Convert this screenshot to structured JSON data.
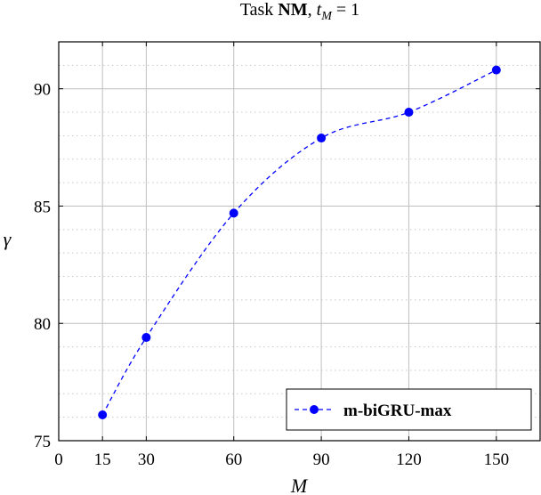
{
  "chart_data": {
    "type": "line",
    "title": {
      "prefix": "Task ",
      "bold": "NM",
      "comma": ", ",
      "var": "t",
      "sub": "M",
      "rest": " = 1"
    },
    "xlabel": "M",
    "ylabel": "γ",
    "x_ticks": [
      0,
      15,
      30,
      60,
      90,
      120,
      150
    ],
    "x_grid": [
      15,
      30,
      60,
      90,
      120,
      150
    ],
    "y_ticks": [
      75,
      80,
      85,
      90
    ],
    "y_minor_step": 1,
    "xlim": [
      0,
      165
    ],
    "ylim": [
      75,
      92
    ],
    "grid": true,
    "legend_position": "bottom-right",
    "series": [
      {
        "name": "m-biGRU-max",
        "color": "#0000ff",
        "line_style": "dashed",
        "marker": "circle",
        "x": [
          15,
          30,
          60,
          90,
          120,
          150
        ],
        "y": [
          76.1,
          79.4,
          84.7,
          87.9,
          89.0,
          90.8
        ]
      }
    ]
  }
}
